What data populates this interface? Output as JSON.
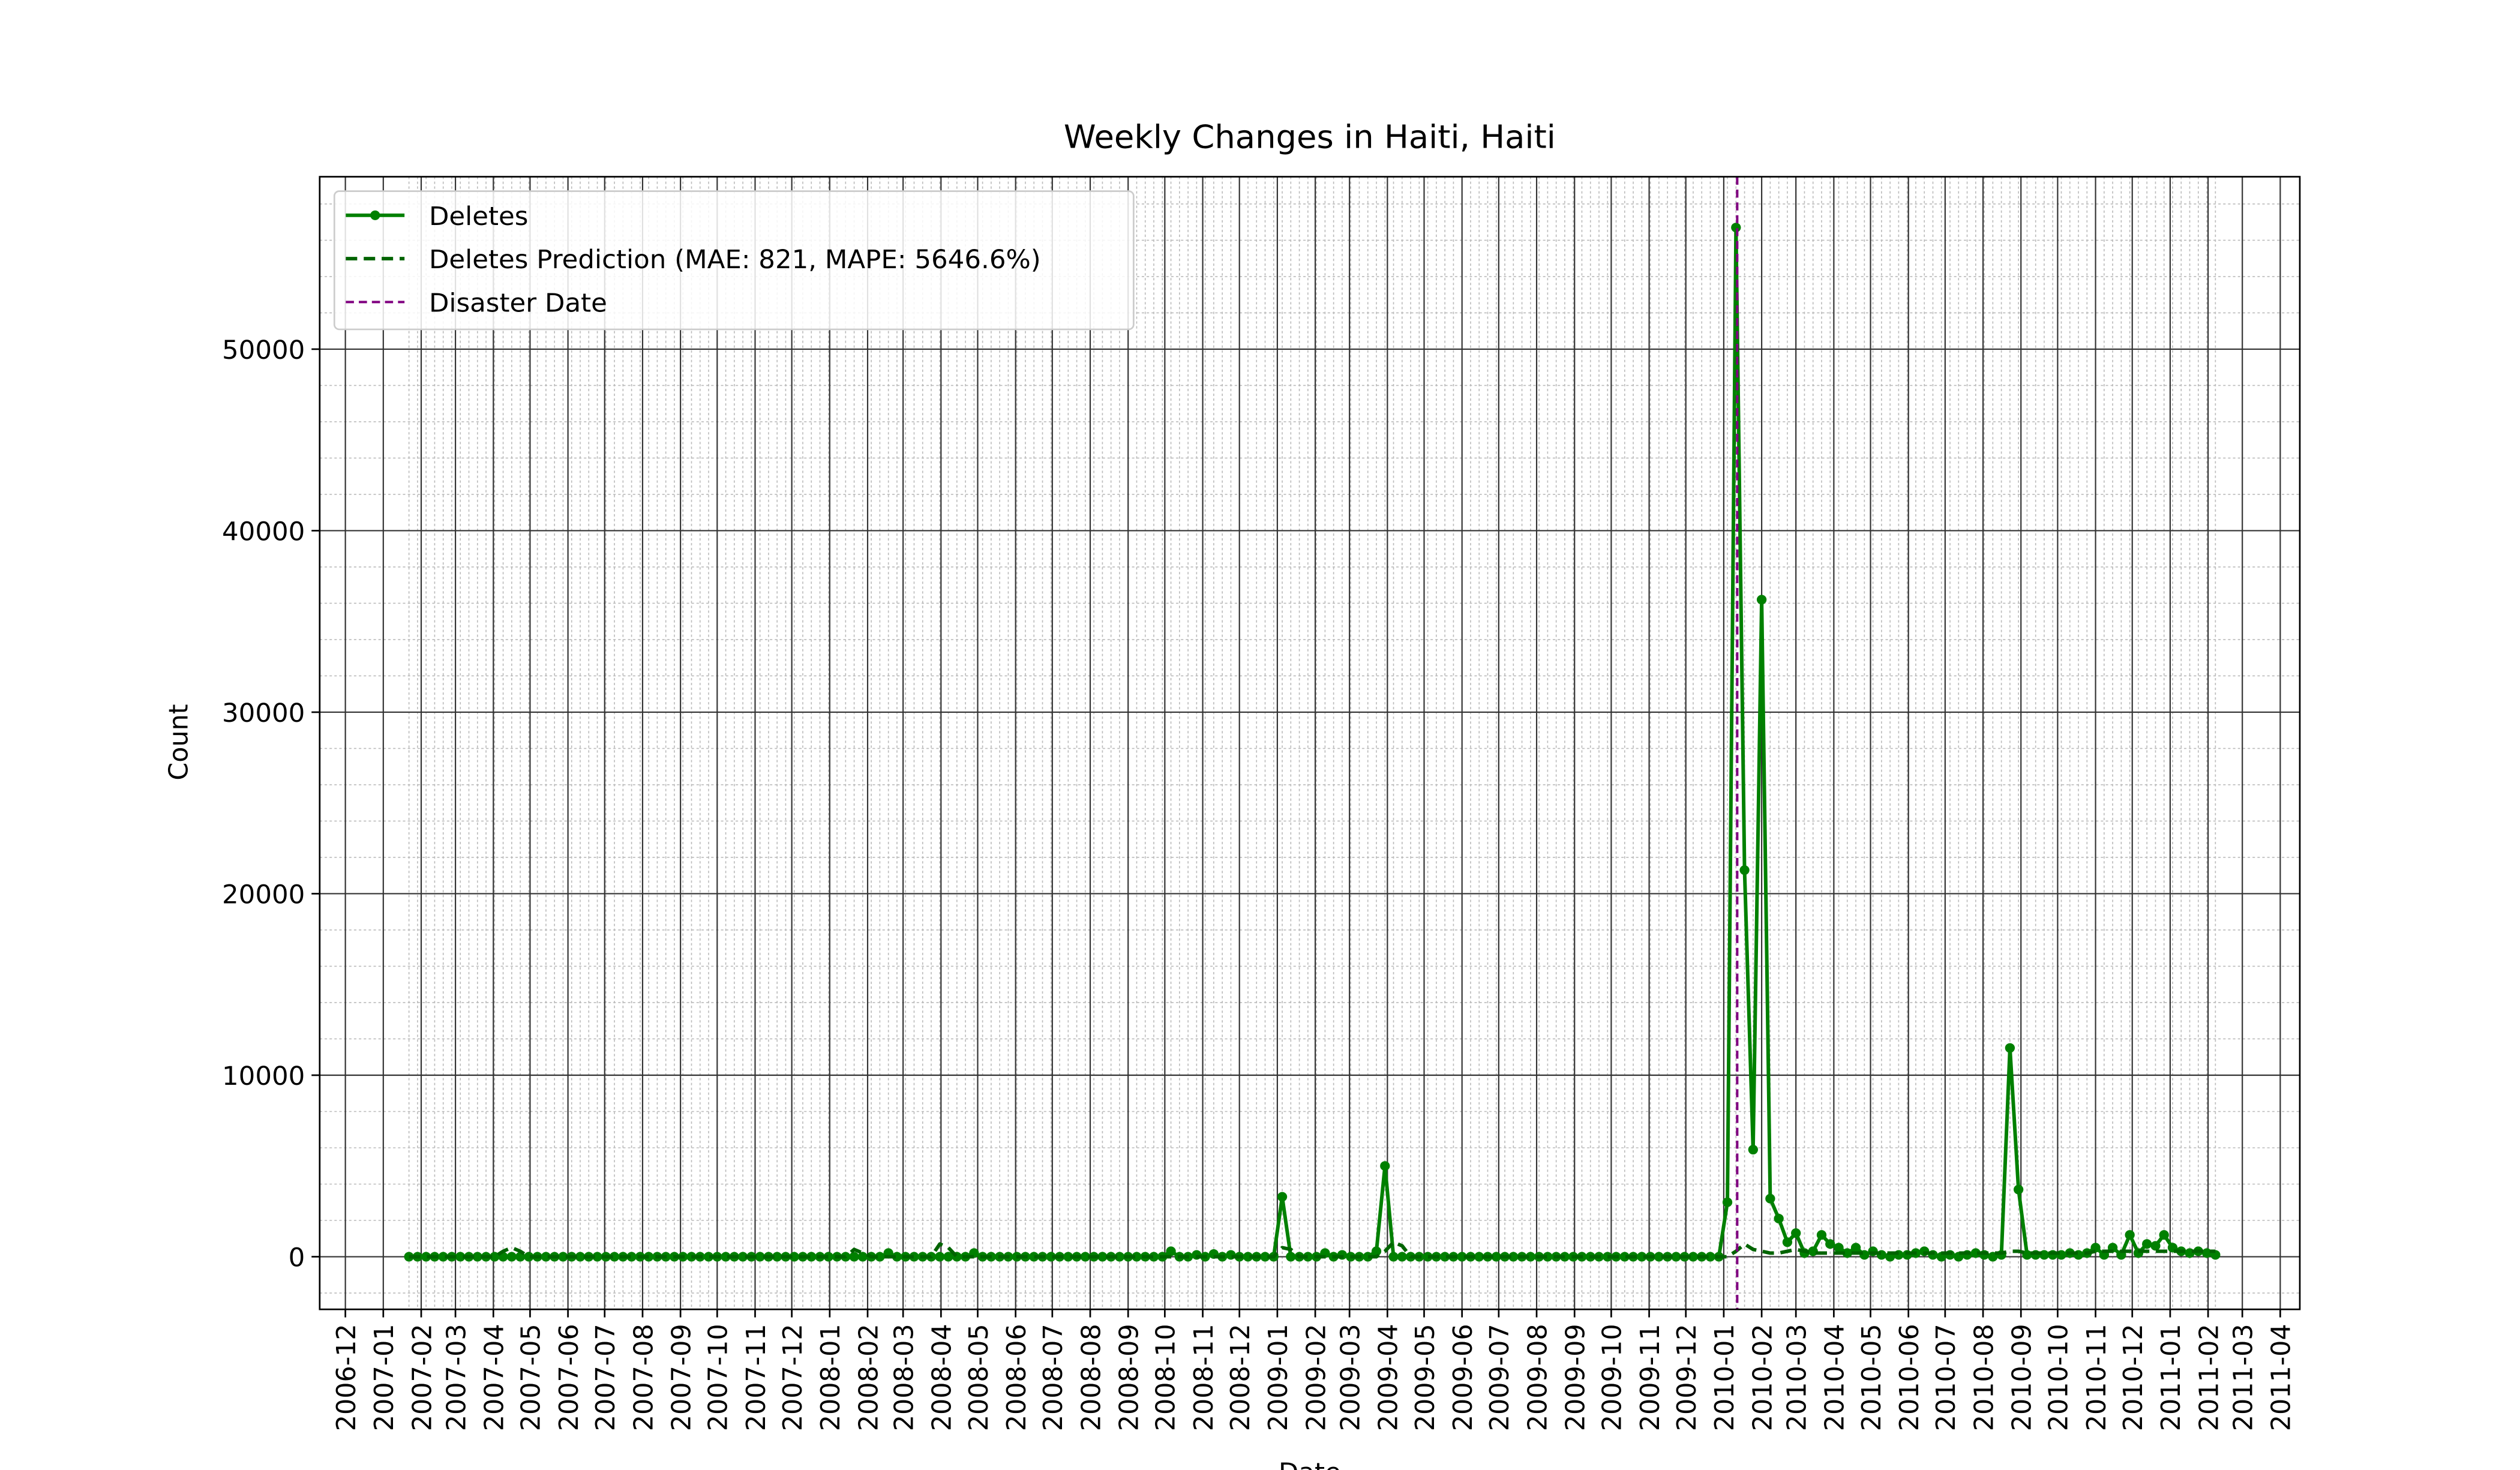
{
  "chart_data": {
    "type": "line",
    "title": "Weekly Changes in Haiti, Haiti",
    "x_label": "Date",
    "y_label": "Count",
    "x": [
      "2007-01-22",
      "2007-01-29",
      "2007-02-05",
      "2007-02-12",
      "2007-02-19",
      "2007-02-26",
      "2007-03-05",
      "2007-03-12",
      "2007-03-19",
      "2007-03-26",
      "2007-04-02",
      "2007-04-09",
      "2007-04-16",
      "2007-04-23",
      "2007-04-30",
      "2007-05-07",
      "2007-05-14",
      "2007-05-21",
      "2007-05-28",
      "2007-06-04",
      "2007-06-11",
      "2007-06-18",
      "2007-06-25",
      "2007-07-02",
      "2007-07-09",
      "2007-07-16",
      "2007-07-23",
      "2007-07-30",
      "2007-08-06",
      "2007-08-13",
      "2007-08-20",
      "2007-08-27",
      "2007-09-03",
      "2007-09-10",
      "2007-09-17",
      "2007-09-24",
      "2007-10-01",
      "2007-10-08",
      "2007-10-15",
      "2007-10-22",
      "2007-10-29",
      "2007-11-05",
      "2007-11-12",
      "2007-11-19",
      "2007-11-26",
      "2007-12-03",
      "2007-12-10",
      "2007-12-17",
      "2007-12-24",
      "2007-12-31",
      "2008-01-07",
      "2008-01-14",
      "2008-01-21",
      "2008-01-28",
      "2008-02-04",
      "2008-02-11",
      "2008-02-18",
      "2008-02-25",
      "2008-03-03",
      "2008-03-10",
      "2008-03-17",
      "2008-03-24",
      "2008-03-31",
      "2008-04-07",
      "2008-04-14",
      "2008-04-21",
      "2008-04-28",
      "2008-05-05",
      "2008-05-12",
      "2008-05-19",
      "2008-05-26",
      "2008-06-02",
      "2008-06-09",
      "2008-06-16",
      "2008-06-23",
      "2008-06-30",
      "2008-07-07",
      "2008-07-14",
      "2008-07-21",
      "2008-07-28",
      "2008-08-04",
      "2008-08-11",
      "2008-08-18",
      "2008-08-25",
      "2008-09-01",
      "2008-09-08",
      "2008-09-15",
      "2008-09-22",
      "2008-09-29",
      "2008-10-06",
      "2008-10-13",
      "2008-10-20",
      "2008-10-27",
      "2008-11-03",
      "2008-11-10",
      "2008-11-17",
      "2008-11-24",
      "2008-12-01",
      "2008-12-08",
      "2008-12-15",
      "2008-12-22",
      "2008-12-29",
      "2009-01-05",
      "2009-01-12",
      "2009-01-19",
      "2009-01-26",
      "2009-02-02",
      "2009-02-09",
      "2009-02-16",
      "2009-02-23",
      "2009-03-02",
      "2009-03-09",
      "2009-03-16",
      "2009-03-23",
      "2009-03-30",
      "2009-04-06",
      "2009-04-13",
      "2009-04-20",
      "2009-04-27",
      "2009-05-04",
      "2009-05-11",
      "2009-05-18",
      "2009-05-25",
      "2009-06-01",
      "2009-06-08",
      "2009-06-15",
      "2009-06-22",
      "2009-06-29",
      "2009-07-06",
      "2009-07-13",
      "2009-07-20",
      "2009-07-27",
      "2009-08-03",
      "2009-08-10",
      "2009-08-17",
      "2009-08-24",
      "2009-08-31",
      "2009-09-07",
      "2009-09-14",
      "2009-09-21",
      "2009-09-28",
      "2009-10-05",
      "2009-10-12",
      "2009-10-19",
      "2009-10-26",
      "2009-11-02",
      "2009-11-09",
      "2009-11-16",
      "2009-11-23",
      "2009-11-30",
      "2009-12-07",
      "2009-12-14",
      "2009-12-21",
      "2009-12-28",
      "2010-01-04",
      "2010-01-11",
      "2010-01-18",
      "2010-01-25",
      "2010-02-01",
      "2010-02-08",
      "2010-02-15",
      "2010-02-22",
      "2010-03-01",
      "2010-03-08",
      "2010-03-15",
      "2010-03-22",
      "2010-03-29",
      "2010-04-05",
      "2010-04-12",
      "2010-04-19",
      "2010-04-26",
      "2010-05-03",
      "2010-05-10",
      "2010-05-17",
      "2010-05-24",
      "2010-05-31",
      "2010-06-07",
      "2010-06-14",
      "2010-06-21",
      "2010-06-28",
      "2010-07-05",
      "2010-07-12",
      "2010-07-19",
      "2010-07-26",
      "2010-08-02",
      "2010-08-09",
      "2010-08-16",
      "2010-08-23",
      "2010-08-30",
      "2010-09-06",
      "2010-09-13",
      "2010-09-20",
      "2010-09-27",
      "2010-10-04",
      "2010-10-11",
      "2010-10-18",
      "2010-10-25",
      "2010-11-01",
      "2010-11-08",
      "2010-11-15",
      "2010-11-22",
      "2010-11-29",
      "2010-12-06",
      "2010-12-13",
      "2010-12-20",
      "2010-12-27",
      "2011-01-03",
      "2011-01-10",
      "2011-01-17",
      "2011-01-24",
      "2011-01-31",
      "2011-02-07"
    ],
    "series": [
      {
        "name": "Deletes",
        "color": "#008000",
        "style": "solid-marker",
        "values": [
          0,
          0,
          0,
          0,
          0,
          0,
          0,
          0,
          0,
          0,
          0,
          0,
          0,
          0,
          0,
          0,
          0,
          0,
          0,
          0,
          0,
          0,
          0,
          0,
          0,
          0,
          0,
          0,
          0,
          0,
          0,
          0,
          0,
          0,
          0,
          0,
          0,
          0,
          0,
          0,
          0,
          0,
          0,
          0,
          0,
          0,
          0,
          0,
          0,
          0,
          0,
          0,
          0,
          0,
          0,
          0,
          200,
          0,
          0,
          0,
          0,
          0,
          0,
          0,
          0,
          0,
          200,
          0,
          0,
          0,
          0,
          0,
          0,
          0,
          0,
          0,
          0,
          0,
          0,
          0,
          0,
          0,
          0,
          0,
          0,
          0,
          0,
          0,
          0,
          300,
          0,
          0,
          100,
          0,
          150,
          0,
          100,
          0,
          0,
          0,
          0,
          0,
          3300,
          0,
          0,
          0,
          0,
          200,
          0,
          100,
          0,
          0,
          0,
          300,
          5000,
          0,
          0,
          0,
          0,
          0,
          0,
          0,
          0,
          0,
          0,
          0,
          0,
          0,
          0,
          0,
          0,
          0,
          0,
          0,
          0,
          0,
          0,
          0,
          0,
          0,
          0,
          0,
          0,
          0,
          0,
          0,
          0,
          0,
          0,
          0,
          0,
          0,
          0,
          0,
          3000,
          56700,
          21300,
          5900,
          36200,
          3200,
          2100,
          800,
          1300,
          200,
          300,
          1200,
          700,
          500,
          200,
          500,
          100,
          300,
          100,
          0,
          100,
          100,
          200,
          300,
          100,
          0,
          100,
          0,
          100,
          200,
          100,
          0,
          100,
          11500,
          3700,
          100,
          100,
          100,
          100,
          100,
          200,
          100,
          200,
          500,
          100,
          500,
          100,
          1200,
          200,
          700,
          600,
          1200,
          500,
          300,
          200,
          300,
          200,
          100
        ]
      },
      {
        "name": "Deletes Prediction (MAE: 821, MAPE: 5646.6%)",
        "color": "#006400",
        "style": "dashed",
        "values": [
          0,
          0,
          0,
          0,
          0,
          0,
          0,
          0,
          0,
          0,
          0,
          300,
          500,
          300,
          0,
          0,
          0,
          0,
          0,
          0,
          0,
          0,
          0,
          0,
          0,
          0,
          0,
          0,
          0,
          0,
          0,
          0,
          0,
          0,
          0,
          0,
          0,
          0,
          0,
          0,
          0,
          0,
          0,
          0,
          0,
          0,
          0,
          0,
          0,
          0,
          0,
          0,
          400,
          200,
          0,
          0,
          0,
          0,
          0,
          0,
          0,
          0,
          700,
          500,
          0,
          0,
          0,
          0,
          0,
          0,
          0,
          0,
          0,
          0,
          0,
          0,
          0,
          0,
          0,
          0,
          0,
          0,
          0,
          0,
          0,
          0,
          0,
          0,
          0,
          0,
          0,
          0,
          0,
          0,
          0,
          0,
          0,
          0,
          0,
          0,
          0,
          0,
          500,
          400,
          0,
          0,
          0,
          0,
          0,
          0,
          0,
          0,
          0,
          0,
          300,
          800,
          600,
          0,
          0,
          0,
          0,
          0,
          0,
          0,
          0,
          0,
          0,
          0,
          0,
          0,
          0,
          0,
          0,
          0,
          0,
          0,
          0,
          0,
          0,
          0,
          0,
          0,
          0,
          0,
          0,
          0,
          0,
          0,
          0,
          0,
          0,
          0,
          0,
          0,
          0,
          300,
          700,
          400,
          300,
          200,
          200,
          300,
          400,
          300,
          200,
          200,
          200,
          200,
          200,
          200,
          200,
          200,
          200,
          200,
          200,
          200,
          200,
          200,
          200,
          200,
          200,
          200,
          200,
          200,
          200,
          200,
          200,
          300,
          300,
          200,
          200,
          200,
          200,
          200,
          200,
          200,
          200,
          300,
          300,
          300,
          300,
          300,
          300,
          300,
          300,
          300,
          300,
          300,
          300,
          300,
          300,
          300
        ]
      }
    ],
    "vline": {
      "name": "Disaster Date",
      "x": "2010-01-12",
      "color": "#800080"
    },
    "xlim": [
      "2006-11-10",
      "2011-04-17"
    ],
    "xticks": [
      {
        "value": "2006-12-01",
        "label": "2006-12"
      },
      {
        "value": "2007-01-01",
        "label": "2007-01"
      },
      {
        "value": "2007-02-01",
        "label": "2007-02"
      },
      {
        "value": "2007-03-01",
        "label": "2007-03"
      },
      {
        "value": "2007-04-01",
        "label": "2007-04"
      },
      {
        "value": "2007-05-01",
        "label": "2007-05"
      },
      {
        "value": "2007-06-01",
        "label": "2007-06"
      },
      {
        "value": "2007-07-01",
        "label": "2007-07"
      },
      {
        "value": "2007-08-01",
        "label": "2007-08"
      },
      {
        "value": "2007-09-01",
        "label": "2007-09"
      },
      {
        "value": "2007-10-01",
        "label": "2007-10"
      },
      {
        "value": "2007-11-01",
        "label": "2007-11"
      },
      {
        "value": "2007-12-01",
        "label": "2007-12"
      },
      {
        "value": "2008-01-01",
        "label": "2008-01"
      },
      {
        "value": "2008-02-01",
        "label": "2008-02"
      },
      {
        "value": "2008-03-01",
        "label": "2008-03"
      },
      {
        "value": "2008-04-01",
        "label": "2008-04"
      },
      {
        "value": "2008-05-01",
        "label": "2008-05"
      },
      {
        "value": "2008-06-01",
        "label": "2008-06"
      },
      {
        "value": "2008-07-01",
        "label": "2008-07"
      },
      {
        "value": "2008-08-01",
        "label": "2008-08"
      },
      {
        "value": "2008-09-01",
        "label": "2008-09"
      },
      {
        "value": "2008-10-01",
        "label": "2008-10"
      },
      {
        "value": "2008-11-01",
        "label": "2008-11"
      },
      {
        "value": "2008-12-01",
        "label": "2008-12"
      },
      {
        "value": "2009-01-01",
        "label": "2009-01"
      },
      {
        "value": "2009-02-01",
        "label": "2009-02"
      },
      {
        "value": "2009-03-01",
        "label": "2009-03"
      },
      {
        "value": "2009-04-01",
        "label": "2009-04"
      },
      {
        "value": "2009-05-01",
        "label": "2009-05"
      },
      {
        "value": "2009-06-01",
        "label": "2009-06"
      },
      {
        "value": "2009-07-01",
        "label": "2009-07"
      },
      {
        "value": "2009-08-01",
        "label": "2009-08"
      },
      {
        "value": "2009-09-01",
        "label": "2009-09"
      },
      {
        "value": "2009-10-01",
        "label": "2009-10"
      },
      {
        "value": "2009-11-01",
        "label": "2009-11"
      },
      {
        "value": "2009-12-01",
        "label": "2009-12"
      },
      {
        "value": "2010-01-01",
        "label": "2010-01"
      },
      {
        "value": "2010-02-01",
        "label": "2010-02"
      },
      {
        "value": "2010-03-01",
        "label": "2010-03"
      },
      {
        "value": "2010-04-01",
        "label": "2010-04"
      },
      {
        "value": "2010-05-01",
        "label": "2010-05"
      },
      {
        "value": "2010-06-01",
        "label": "2010-06"
      },
      {
        "value": "2010-07-01",
        "label": "2010-07"
      },
      {
        "value": "2010-08-01",
        "label": "2010-08"
      },
      {
        "value": "2010-09-01",
        "label": "2010-09"
      },
      {
        "value": "2010-10-01",
        "label": "2010-10"
      },
      {
        "value": "2010-11-01",
        "label": "2010-11"
      },
      {
        "value": "2010-12-01",
        "label": "2010-12"
      },
      {
        "value": "2011-01-01",
        "label": "2011-01"
      },
      {
        "value": "2011-02-01",
        "label": "2011-02"
      },
      {
        "value": "2011-03-01",
        "label": "2011-03"
      },
      {
        "value": "2011-04-01",
        "label": "2011-04"
      }
    ],
    "ylim": [
      -2900,
      59500
    ],
    "yticks": [
      0,
      10000,
      20000,
      30000,
      40000,
      50000
    ],
    "grid": true,
    "minor_grid": true,
    "legend": "upper left"
  }
}
